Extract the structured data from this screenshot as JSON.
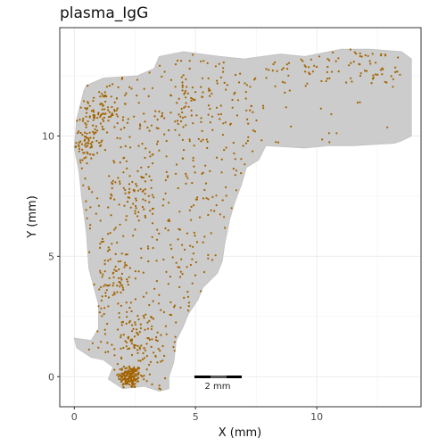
{
  "chart_data": {
    "type": "scatter",
    "title": "plasma_IgG",
    "xlabel": "X (mm)",
    "ylabel": "Y (mm)",
    "xlim": [
      -0.6,
      14.3
    ],
    "ylim": [
      -1.25,
      14.5
    ],
    "x_ticks": [
      0,
      5,
      10
    ],
    "y_ticks": [
      0,
      5,
      10
    ],
    "x_tick_labels": [
      "0",
      "5",
      "10"
    ],
    "y_tick_labels": [
      "0",
      "5",
      "10"
    ],
    "grid": true,
    "series": [
      {
        "role": "tissue",
        "color": "#cccccc",
        "outline_x": [
          0.0,
          0.7,
          1.0,
          1.0,
          0.6,
          0.5,
          0.3,
          0.2,
          0.0,
          0.1,
          0.4,
          0.5,
          1.2,
          2.6,
          3.3,
          3.5,
          4.5,
          6.0,
          7.0,
          8.5,
          9.5,
          11.0,
          12.2,
          13.5,
          13.9,
          13.9,
          13.5,
          13.2,
          11.5,
          10.5,
          9.5,
          7.9,
          7.6,
          7.1,
          6.9,
          6.6,
          6.4,
          6.2,
          6.1,
          5.9,
          5.3,
          5.1,
          4.7,
          4.5,
          4.2,
          4.1,
          3.9,
          3.9,
          3.5,
          2.9,
          2.0,
          1.4,
          1.6,
          1.2,
          0.7,
          0.4,
          0.1,
          0.0
        ],
        "outline_y": [
          1.6,
          1.5,
          2.0,
          3.0,
          4.5,
          6.0,
          7.5,
          8.5,
          9.5,
          10.7,
          11.9,
          12.1,
          12.4,
          12.5,
          12.8,
          13.3,
          13.5,
          13.3,
          13.2,
          13.4,
          13.3,
          13.6,
          13.6,
          13.5,
          13.2,
          10.0,
          9.8,
          9.7,
          9.6,
          9.6,
          9.5,
          9.6,
          9.0,
          8.7,
          8.0,
          7.2,
          6.5,
          5.5,
          4.8,
          4.3,
          3.7,
          3.2,
          2.6,
          2.1,
          1.5,
          0.6,
          0.0,
          -0.5,
          -0.6,
          -0.4,
          -0.5,
          -0.1,
          0.4,
          0.7,
          0.8,
          1.0,
          1.2,
          1.6
        ]
      },
      {
        "role": "plasma_IgG",
        "color": "#a36400",
        "hotspots": [
          {
            "x": 2.3,
            "y": 0.0,
            "sx": 0.25,
            "sy": 0.25,
            "n": 160
          },
          {
            "x": 1.1,
            "y": 11.0,
            "sx": 0.4,
            "sy": 0.45,
            "n": 85
          },
          {
            "x": 0.5,
            "y": 9.7,
            "sx": 0.25,
            "sy": 0.45,
            "n": 55
          },
          {
            "x": 2.6,
            "y": 1.6,
            "sx": 0.5,
            "sy": 0.6,
            "n": 75
          },
          {
            "x": 1.6,
            "y": 4.0,
            "sx": 0.45,
            "sy": 0.6,
            "n": 50
          },
          {
            "x": 4.8,
            "y": 11.3,
            "sx": 0.5,
            "sy": 0.5,
            "n": 40
          },
          {
            "x": 2.8,
            "y": 7.5,
            "sx": 0.5,
            "sy": 0.6,
            "n": 35
          },
          {
            "x": 9.6,
            "y": 13.0,
            "sx": 0.6,
            "sy": 0.3,
            "n": 20
          },
          {
            "x": 12.3,
            "y": 13.1,
            "sx": 0.5,
            "sy": 0.3,
            "n": 20
          }
        ],
        "uniform_count": 600
      }
    ]
  },
  "scalebar": {
    "label": "2 mm"
  }
}
